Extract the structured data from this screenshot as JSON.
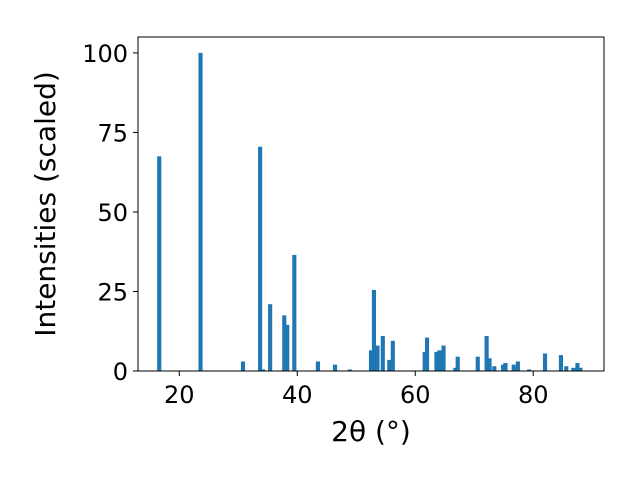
{
  "chart_data": {
    "type": "bar",
    "xlabel": "2θ (°)",
    "ylabel": "Intensities (scaled)",
    "xlim": [
      13,
      92
    ],
    "ylim": [
      0,
      105
    ],
    "xticks": [
      20,
      40,
      60,
      80
    ],
    "yticks": [
      0,
      25,
      50,
      75,
      100
    ],
    "grid": false,
    "bar_color": "#1f77b4",
    "bar_width_deg": 0.7,
    "x": [
      16.6,
      23.6,
      30.8,
      33.7,
      34.2,
      35.4,
      37.8,
      38.3,
      39.5,
      43.5,
      46.4,
      48.9,
      52.5,
      53.0,
      53.6,
      54.5,
      55.6,
      56.2,
      61.6,
      62.0,
      63.6,
      64.1,
      64.8,
      66.8,
      67.2,
      70.6,
      72.1,
      72.6,
      73.4,
      74.9,
      75.3,
      76.7,
      77.4,
      79.3,
      82.0,
      84.7,
      85.6,
      86.8,
      87.5,
      88.0
    ],
    "values": [
      67.5,
      100,
      3,
      70.5,
      0.5,
      21,
      17.5,
      14.5,
      36.5,
      3,
      2,
      0.5,
      6.5,
      25.5,
      8,
      11,
      3.5,
      9.5,
      6,
      10.5,
      6,
      6.5,
      8,
      1,
      4.5,
      4.5,
      11,
      4,
      1.5,
      2,
      2.5,
      2,
      3,
      0.5,
      5.5,
      5,
      1.5,
      1,
      2.5,
      1
    ]
  }
}
